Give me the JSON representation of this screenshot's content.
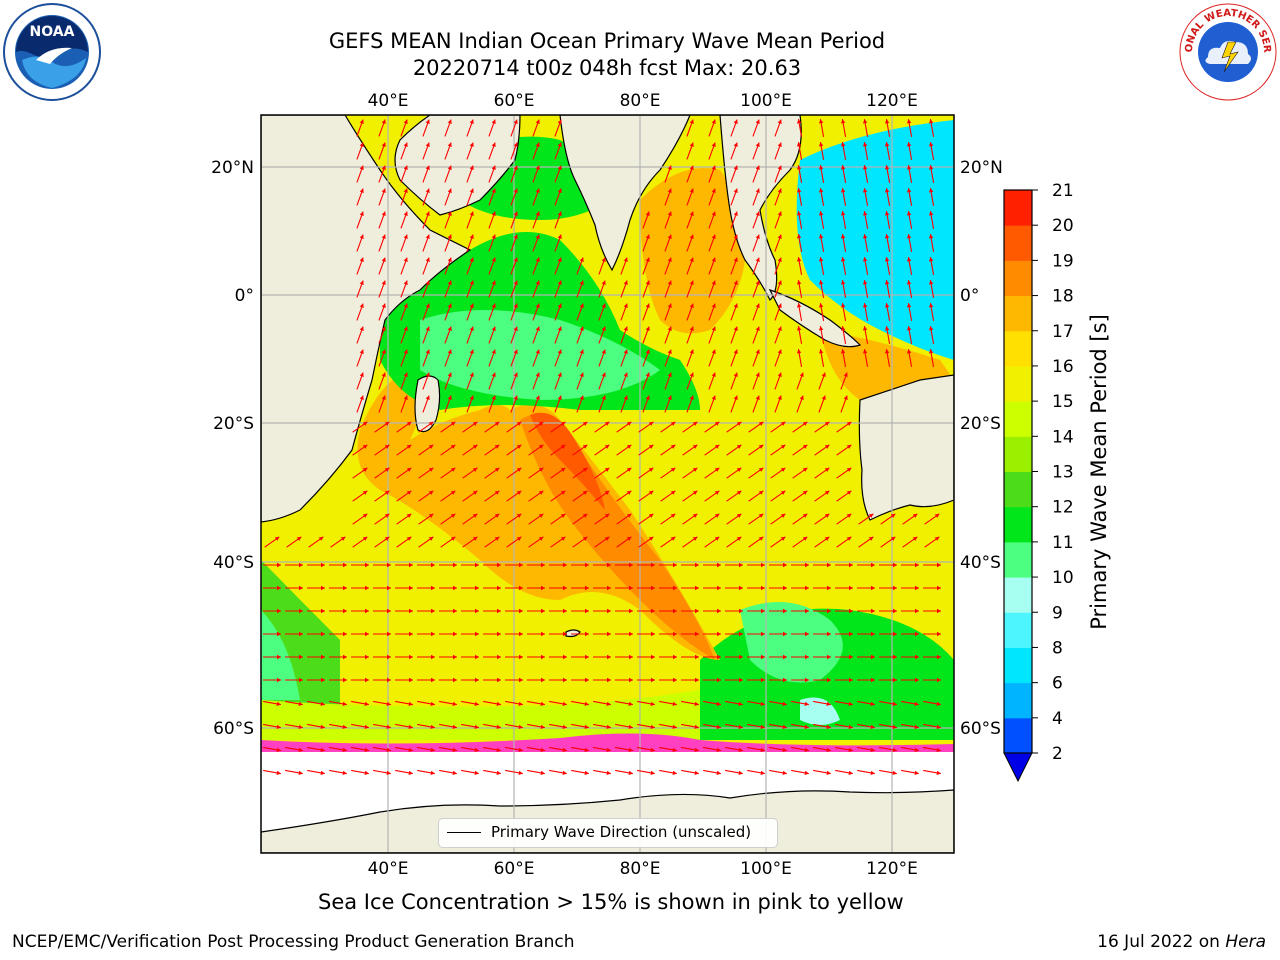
{
  "title": {
    "line1": "GEFS MEAN Indian Ocean Primary Wave Mean Period",
    "line2": "20220714 t00z 048h fcst   Max: 20.63"
  },
  "axes": {
    "lon_labels": [
      "40°E",
      "60°E",
      "80°E",
      "100°E",
      "120°E"
    ],
    "lat_labels": [
      "20°N",
      "0°",
      "20°S",
      "40°S",
      "60°S"
    ]
  },
  "colorbar": {
    "title": "Primary Wave Mean Period [s]",
    "ticks": [
      "2",
      "4",
      "6",
      "8",
      "9",
      "10",
      "11",
      "12",
      "13",
      "14",
      "15",
      "16",
      "17",
      "18",
      "19",
      "20",
      "21"
    ],
    "colors": [
      "#0050ff",
      "#00b4ff",
      "#00e6ff",
      "#4df5ff",
      "#a6fff0",
      "#4dff80",
      "#00e61a",
      "#4ddc1a",
      "#9bf000",
      "#ccff00",
      "#f0f000",
      "#ffe000",
      "#ffb800",
      "#ff8c00",
      "#ff5a00",
      "#ff2000"
    ],
    "under_color": "#0000e6"
  },
  "legend": {
    "label": "Primary Wave Direction (unscaled)"
  },
  "subtitle": "Sea Ice Concentration > 15% is shown in pink to yellow",
  "footer": {
    "left": "NCEP/EMC/Verification Post Processing Product Generation Branch",
    "date": "16 Jul 2022 on ",
    "host": "Hera"
  },
  "logos": {
    "left": "NOAA",
    "right": "NATIONAL WEATHER SERVICE"
  },
  "colors": {
    "land": "#efeedd",
    "arrow": "#ff0000",
    "grid": "#b4b4b4"
  }
}
